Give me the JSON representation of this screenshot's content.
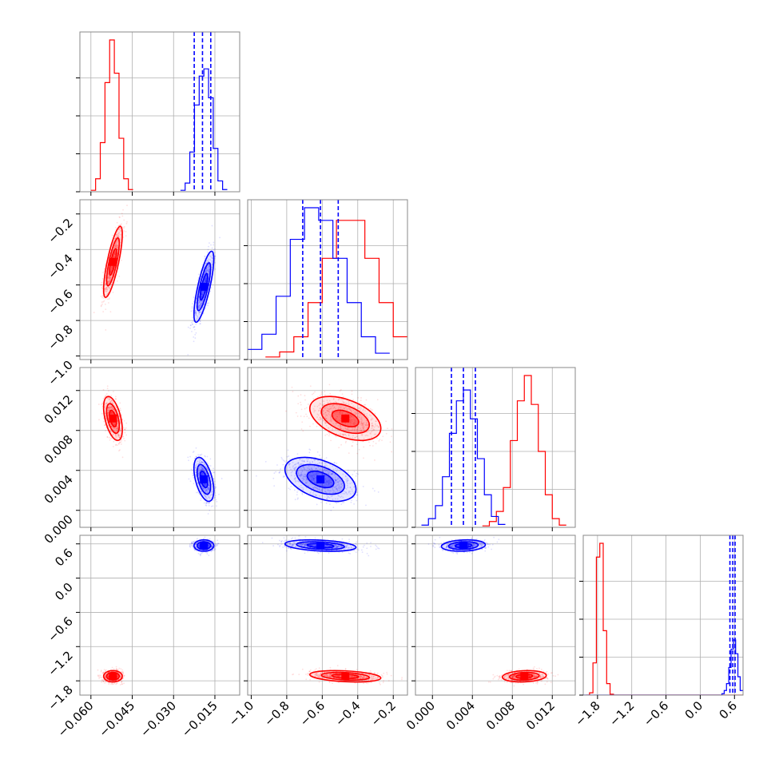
{
  "colors": {
    "series_a": "#ff0000",
    "series_b": "#0000ff",
    "grid": "#b0b0b0",
    "frame": "#888888"
  },
  "chart_data": {
    "type": "corner",
    "grid": true,
    "dims": [
      {
        "range": [
          -0.064,
          -0.006
        ],
        "ticks": [
          -0.06,
          -0.045,
          -0.03,
          -0.015
        ],
        "tick_labels": [
          "−0.060",
          "−0.045",
          "−0.030",
          "−0.015"
        ]
      },
      {
        "range": [
          -1.02,
          -0.12
        ],
        "ticks": [
          -1.0,
          -0.8,
          -0.6,
          -0.4,
          -0.2
        ],
        "tick_labels": [
          "−1.0",
          "−0.8",
          "−0.6",
          "−0.4",
          "−0.2"
        ]
      },
      {
        "range": [
          -0.0017,
          0.0143
        ],
        "ticks": [
          0.0,
          0.004,
          0.008,
          0.012
        ],
        "tick_labels": [
          "0.000",
          "0.004",
          "0.008",
          "0.012"
        ]
      },
      {
        "range": [
          -2.05,
          0.75
        ],
        "ticks": [
          -1.8,
          -1.2,
          -0.6,
          0.0,
          0.6
        ],
        "tick_labels": [
          "−1.8",
          "−1.2",
          "−0.6",
          "0.0",
          "0.6"
        ]
      }
    ],
    "series": [
      {
        "color": "#ff0000",
        "mean": [
          -0.052,
          -0.47,
          0.0092,
          -1.72
        ],
        "std": [
          0.0017,
          0.1,
          0.0011,
          0.05
        ],
        "corr": [
          [
            1,
            0.78,
            -0.5,
            0.0
          ],
          [
            0.78,
            1,
            -0.45,
            -0.3
          ],
          [
            -0.5,
            -0.45,
            1,
            0.15
          ],
          [
            0.0,
            -0.3,
            0.15,
            1
          ]
        ],
        "hist": [
          {
            "edges": [
              -0.06,
              -0.0583,
              -0.0566,
              -0.0549,
              -0.0532,
              -0.0515,
              -0.0498,
              -0.0481,
              -0.0464,
              -0.0447
            ],
            "counts": [
              2,
              18,
              68,
              151,
              210,
              164,
              74,
              18,
              3
            ]
          },
          {
            "edges": [
              -0.92,
              -0.84,
              -0.76,
              -0.68,
              -0.6,
              -0.52,
              -0.44,
              -0.36,
              -0.28,
              -0.2,
              -0.12
            ],
            "counts": [
              2,
              6,
              18,
              45,
              80,
              110,
              110,
              80,
              45,
              18
            ]
          },
          {
            "edges": [
              0.005,
              0.0057,
              0.0064,
              0.0071,
              0.0078,
              0.0085,
              0.0092,
              0.0099,
              0.0106,
              0.0113,
              0.012,
              0.0127,
              0.0134
            ],
            "counts": [
              2,
              8,
              22,
              55,
              120,
              175,
              210,
              170,
              105,
              45,
              12,
              3
            ]
          },
          {
            "edges": [
              -2.0,
              -1.94,
              -1.88,
              -1.82,
              -1.76,
              -1.7,
              -1.64,
              -1.58,
              -1.52,
              -1.46,
              0.75
            ],
            "counts": [
              0,
              5,
              70,
              300,
              330,
              140,
              25,
              2,
              0,
              0
            ]
          }
        ]
      },
      {
        "color": "#0000ff",
        "mean": [
          -0.019,
          -0.61,
          0.0031,
          0.57
        ],
        "std": [
          0.0018,
          0.1,
          0.0011,
          0.05
        ],
        "corr": [
          [
            1,
            0.78,
            -0.5,
            0.0
          ],
          [
            0.78,
            1,
            -0.45,
            -0.3
          ],
          [
            -0.5,
            -0.45,
            1,
            0.15
          ],
          [
            0.0,
            -0.3,
            0.15,
            1
          ]
        ],
        "quantiles": [
          [
            -0.0225,
            -0.0195,
            -0.0165
          ],
          [
            -0.71,
            -0.61,
            -0.51
          ],
          [
            0.0019,
            0.0031,
            0.0043
          ],
          [
            0.52,
            0.57,
            0.61
          ]
        ],
        "hist": [
          {
            "edges": [
              -0.0275,
              -0.0258,
              -0.0241,
              -0.0224,
              -0.0207,
              -0.019,
              -0.0173,
              -0.0156,
              -0.0139,
              -0.0122,
              -0.0105
            ],
            "counts": [
              2,
              12,
              55,
              120,
              160,
              170,
              130,
              60,
              15,
              3
            ]
          },
          {
            "edges": [
              -1.02,
              -0.94,
              -0.86,
              -0.78,
              -0.7,
              -0.62,
              -0.54,
              -0.46,
              -0.38,
              -0.3,
              -0.22
            ],
            "counts": [
              8,
              20,
              50,
              95,
              120,
              110,
              80,
              45,
              18,
              5
            ]
          },
          {
            "edges": [
              -0.0011,
              -0.0004,
              0.0003,
              0.001,
              0.0017,
              0.0024,
              0.0031,
              0.0038,
              0.0045,
              0.0052,
              0.0059,
              0.0066,
              0.0073
            ],
            "counts": [
              3,
              12,
              30,
              70,
              130,
              175,
              190,
              150,
              95,
              45,
              15,
              4
            ]
          },
          {
            "edges": [
              -2.05,
              0.38,
              0.42,
              0.46,
              0.5,
              0.54,
              0.58,
              0.62,
              0.66,
              0.7,
              0.75
            ],
            "counts": [
              0,
              3,
              10,
              25,
              60,
              100,
              120,
              90,
              40,
              10
            ]
          }
        ]
      }
    ]
  }
}
